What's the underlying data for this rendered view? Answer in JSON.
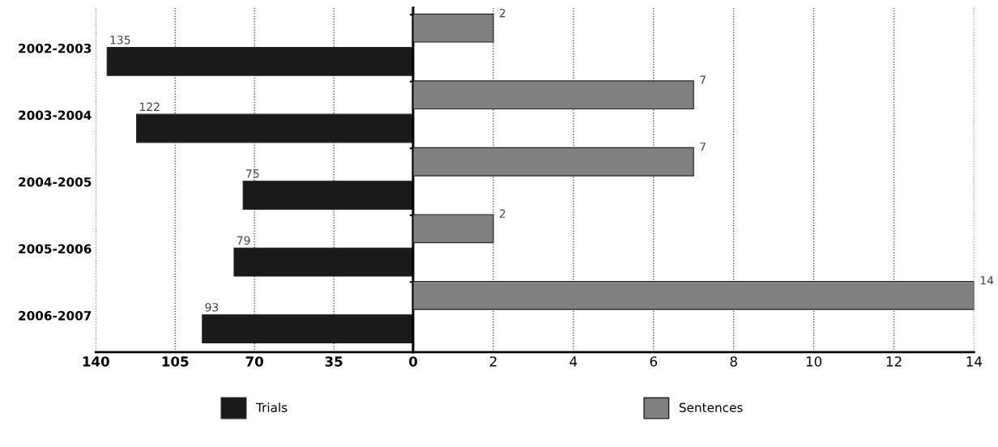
{
  "chart_data": [
    {
      "type": "bar",
      "orientation": "horizontal",
      "categories": [
        "2002-2003",
        "2003-2004",
        "2004-2005",
        "2005-2006",
        "2006-2007"
      ],
      "series": [
        {
          "name": "Trials",
          "color": "#1a1a1a",
          "values": [
            135,
            122,
            75,
            79,
            93
          ]
        }
      ],
      "xlim": [
        140,
        0
      ],
      "xticks": [
        140,
        105,
        70,
        35,
        0
      ],
      "grid": "x",
      "legend": "bottom",
      "data_labels": true
    },
    {
      "type": "bar",
      "orientation": "horizontal",
      "categories": [
        null,
        null,
        null,
        null,
        null
      ],
      "series": [
        {
          "name": "Sentences",
          "color": "#808080",
          "values": [
            2,
            7,
            7,
            2,
            14
          ]
        }
      ],
      "xlim": [
        0,
        14
      ],
      "xticks": [
        {
          "value": 0,
          "label": null
        },
        2,
        4,
        6,
        8,
        10,
        12,
        14
      ],
      "grid": "x",
      "legend": "bottom",
      "data_labels": true,
      "tick_labels": "x"
    }
  ]
}
